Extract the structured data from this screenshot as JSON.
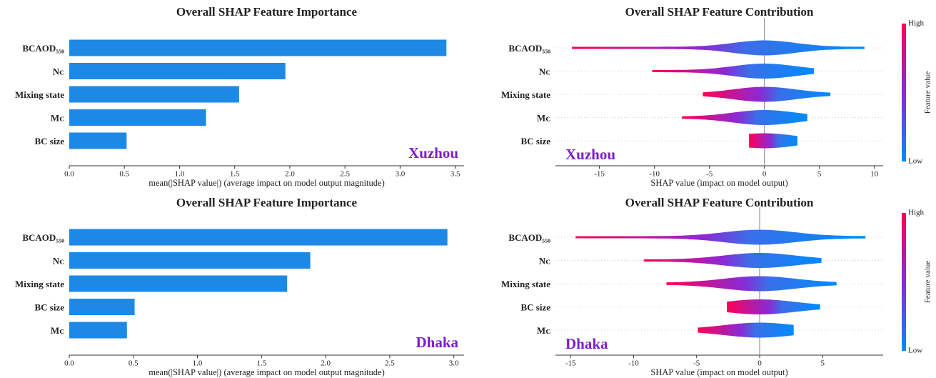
{
  "chart_data": [
    {
      "type": "bar",
      "title": "Overall SHAP Feature Importance",
      "xlabel": "mean(|SHAP value|) (average impact on model output magnitude)",
      "annotation": "Xuzhou",
      "categories": [
        "BCAOD₅₅₀",
        "Nᴄ",
        "Mixing state",
        "Mᴄ",
        "BC size"
      ],
      "values": [
        3.42,
        1.96,
        1.54,
        1.24,
        0.52
      ],
      "color": "#1e88e5",
      "xlim": [
        0,
        3.58
      ],
      "xticks": [
        {
          "value": 0,
          "label": "0.0"
        },
        0.5,
        {
          "value": 1,
          "label": "1.0"
        },
        1.5,
        {
          "value": 2,
          "label": "2.0"
        },
        2.5,
        {
          "value": 3,
          "label": "3.0"
        },
        3.5
      ]
    },
    {
      "type": "violin",
      "title": "Overall SHAP Feature Contribution",
      "xlabel": "SHAP value (impact on model output)",
      "annotation": "Xuzhou",
      "categories": [
        "BCAOD₅₅₀",
        "Nᴄ",
        "Mixing state",
        "Mᴄ",
        "BC size"
      ],
      "min": [
        -17.5,
        -10.2,
        -5.6,
        -7.5,
        -1.4
      ],
      "max": [
        9.1,
        4.5,
        6.0,
        3.9,
        3.0
      ],
      "xlim": [
        -19.0,
        10.8
      ],
      "xticks": [
        -15,
        -10,
        -5,
        0,
        5,
        10
      ],
      "colorbar": {
        "high": "High",
        "low": "Low",
        "label": "Feature value"
      }
    },
    {
      "type": "bar",
      "title": "Overall SHAP Feature Importance",
      "xlabel": "mean(|SHAP value|) (average impact on model output magnitude)",
      "annotation": "Dhaka",
      "categories": [
        "BCAOD₅₅₀",
        "Nᴄ",
        "Mixing state",
        "BC size",
        "Mᴄ"
      ],
      "values": [
        2.95,
        1.88,
        1.7,
        0.51,
        0.45
      ],
      "color": "#1e88e5",
      "xlim": [
        0,
        3.08
      ],
      "xticks": [
        {
          "value": 0,
          "label": "0.0"
        },
        0.5,
        {
          "value": 1,
          "label": "1.0"
        },
        1.5,
        {
          "value": 2,
          "label": "2.0"
        },
        2.5,
        {
          "value": 3,
          "label": "3.0"
        }
      ]
    },
    {
      "type": "violin",
      "title": "Overall SHAP Feature Contribution",
      "xlabel": "SHAP value (impact on model output)",
      "annotation": "Dhaka",
      "categories": [
        "BCAOD₅₅₀",
        "Nᴄ",
        "Mixing state",
        "BC size",
        "Mᴄ"
      ],
      "min": [
        -14.6,
        -9.2,
        -7.4,
        -2.6,
        -4.9
      ],
      "max": [
        8.4,
        4.9,
        6.1,
        4.8,
        2.7
      ],
      "xlim": [
        -16.2,
        9.8
      ],
      "xticks": [
        -15,
        -10,
        -5,
        0,
        5
      ],
      "colorbar": {
        "high": "High",
        "low": "Low",
        "label": "Feature value"
      }
    }
  ]
}
